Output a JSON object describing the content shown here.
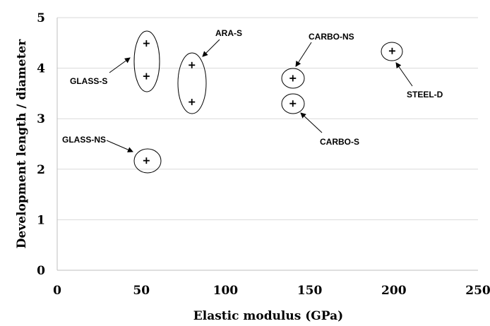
{
  "chart_data": {
    "type": "scatter",
    "title": "",
    "xlabel": "Elastic modulus (GPa)",
    "ylabel": "Development length / diameter",
    "xlim": [
      0,
      250
    ],
    "ylim": [
      0,
      5
    ],
    "xticks": [
      0,
      50,
      100,
      150,
      200,
      250
    ],
    "yticks": [
      0,
      1,
      2,
      3,
      4,
      5
    ],
    "grid": "horizontal",
    "marker": "plus",
    "points": [
      {
        "x": 53,
        "y": 4.49
      },
      {
        "x": 53,
        "y": 3.84
      },
      {
        "x": 80,
        "y": 4.06
      },
      {
        "x": 80,
        "y": 3.33
      },
      {
        "x": 140,
        "y": 3.8
      },
      {
        "x": 140,
        "y": 3.3
      },
      {
        "x": 199,
        "y": 4.34
      },
      {
        "x": 53,
        "y": 2.17
      }
    ],
    "groups": [
      {
        "label": "GLASS-S",
        "points": [
          0,
          1
        ]
      },
      {
        "label": "ARA-S",
        "points": [
          2,
          3
        ]
      },
      {
        "label": "CARBO-NS",
        "points": [
          4
        ]
      },
      {
        "label": "CARBO-S",
        "points": [
          5
        ]
      },
      {
        "label": "STEEL-D",
        "points": [
          6
        ]
      },
      {
        "label": "GLASS-NS",
        "points": [
          7
        ]
      }
    ]
  }
}
